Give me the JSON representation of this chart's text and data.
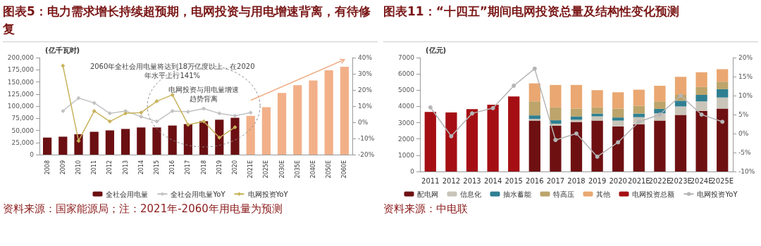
{
  "chart_data": [
    {
      "type": "bar",
      "title": "图表5：电力需求增长持续超预期，电网投资与用电增速背离，有待修复",
      "ylabel": "(亿千瓦时)",
      "categories": [
        "2008",
        "2009",
        "2010",
        "2011",
        "2012",
        "2013",
        "2014",
        "2015",
        "2016",
        "2017",
        "2018",
        "2019",
        "2020",
        "2021E",
        "2025E",
        "2030E",
        "2035E",
        "2040E",
        "2050E",
        "2060E"
      ],
      "series": [
        {
          "name": "全社会用电量",
          "color": "#6b0f12",
          "colors": [
            "#6b0f12",
            "#6b0f12",
            "#6b0f12",
            "#6b0f12",
            "#6b0f12",
            "#6b0f12",
            "#6b0f12",
            "#6b0f12",
            "#6b0f12",
            "#6b0f12",
            "#6b0f12",
            "#6b0f12",
            "#6b0f12",
            "#f2b089",
            "#f2b089",
            "#f2b089",
            "#f2b089",
            "#f2b089",
            "#f2b089",
            "#f2b089"
          ],
          "values": [
            35000,
            37000,
            42000,
            47000,
            50000,
            53000,
            56000,
            56000,
            60000,
            63000,
            69000,
            72000,
            76000,
            80000,
            98000,
            127000,
            143000,
            153000,
            174000,
            181000
          ]
        },
        {
          "name": "全社会用电量YoY",
          "type": "line",
          "axis": "y2",
          "color": "#c2c2c2",
          "values": [
            null,
            7,
            15,
            12,
            5.5,
            7,
            3.5,
            0.5,
            7,
            6.5,
            8.5,
            5.5,
            4,
            6,
            null,
            null,
            null,
            null,
            null,
            null
          ]
        },
        {
          "name": "电网投资YoY",
          "type": "line",
          "axis": "y2",
          "color": "#c8b35c",
          "values": [
            null,
            35,
            -11.5,
            7,
            0.5,
            5.5,
            6,
            13,
            17,
            -1.5,
            0.5,
            -9.5,
            -3,
            null,
            null,
            null,
            null,
            null,
            null,
            null
          ]
        }
      ],
      "ylim": [
        0,
        200000
      ],
      "yticks": [
        0,
        {
          "value": 25000,
          "label": "25,000"
        },
        {
          "value": 50000,
          "label": "50,000"
        },
        {
          "value": 75000,
          "label": "75,000"
        },
        {
          "value": 100000,
          "label": "100,000"
        },
        {
          "value": 125000,
          "label": "125,000"
        },
        {
          "value": 150000,
          "label": "150,000"
        },
        {
          "value": 175000,
          "label": "175,000"
        },
        {
          "value": 200000,
          "label": "200,000"
        }
      ],
      "y2lim": [
        -20,
        40
      ],
      "y2ticks": [
        {
          "value": -20,
          "label": "-20%"
        },
        {
          "value": -10,
          "label": "-10%"
        },
        {
          "value": 0,
          "label": "0%"
        },
        {
          "value": 10,
          "label": "10%"
        },
        {
          "value": 20,
          "label": "20%"
        },
        {
          "value": 30,
          "label": "30%"
        },
        {
          "value": 40,
          "label": "40%"
        }
      ],
      "marker": "diamond",
      "grid": false,
      "legend": "bottom",
      "annotations": [
        "电网投资与用电量增速趋势背离",
        "2060年全社会用电量将达到18万亿度以上，在2020年水平上行141%",
        "资料来源：国家能源局；注：2021年-2060年用电量为预测"
      ]
    },
    {
      "type": "bar",
      "title": "图表11：“十四五”期间电网投资总量及结构性变化预测",
      "ylabel": "(亿元)",
      "stacked": true,
      "categories": [
        "2011",
        "2012",
        "2013",
        "2014",
        "2015",
        "2016",
        "2017",
        "2018",
        "2019",
        "2020",
        "2021E",
        "2022E",
        "2023E",
        "2024E",
        "2025E"
      ],
      "series": [
        {
          "name": "配电网",
          "color": "#6e1012",
          "values": [
            null,
            null,
            null,
            null,
            null,
            3130,
            2810,
            3050,
            3130,
            2770,
            2900,
            3130,
            3480,
            3730,
            3870
          ]
        },
        {
          "name": "信息化",
          "color": "#c9c5b9",
          "values": [
            null,
            null,
            null,
            null,
            null,
            100,
            130,
            130,
            260,
            360,
            440,
            450,
            520,
            580,
            680
          ]
        },
        {
          "name": "抽水蓄能",
          "color": "#2f7f92",
          "values": [
            null,
            null,
            null,
            null,
            null,
            220,
            210,
            210,
            170,
            190,
            220,
            270,
            350,
            400,
            510
          ]
        },
        {
          "name": "特高压",
          "color": "#bca46b",
          "values": [
            null,
            null,
            null,
            null,
            null,
            860,
            790,
            480,
            380,
            550,
            470,
            460,
            360,
            480,
            460
          ]
        },
        {
          "name": "其他",
          "color": "#eaa771",
          "values": [
            null,
            null,
            null,
            null,
            null,
            1110,
            1380,
            1450,
            1060,
            1000,
            1000,
            960,
            1110,
            910,
            770
          ]
        },
        {
          "name": "电网投资总额",
          "color": "#a50f14",
          "values": [
            3660,
            3630,
            3840,
            4110,
            4610,
            null,
            null,
            null,
            null,
            null,
            null,
            null,
            null,
            null,
            null
          ]
        },
        {
          "name": "电网投资YoY",
          "type": "line",
          "axis": "y2",
          "color": "#b5b5b5",
          "values": [
            6.9,
            -0.7,
            5.3,
            6.7,
            12.6,
            17.1,
            -1.7,
            0.0,
            -6.1,
            -2.3,
            3.1,
            5.0,
            10.0,
            5.0,
            3.1
          ]
        }
      ],
      "ylim": [
        0,
        7000
      ],
      "yticks": [
        0,
        1000,
        2000,
        3000,
        4000,
        5000,
        6000,
        7000
      ],
      "y2lim": [
        -10,
        20
      ],
      "y2ticks": [
        {
          "value": -10,
          "label": "-10%"
        },
        {
          "value": -5,
          "label": "-5%"
        },
        {
          "value": 0,
          "label": "0%"
        },
        {
          "value": 5,
          "label": "5%"
        },
        {
          "value": 10,
          "label": "10%"
        },
        {
          "value": 15,
          "label": "15%"
        },
        {
          "value": 20,
          "label": "20%"
        }
      ],
      "marker": "circle",
      "grid": false,
      "legend": "bottom",
      "annotations": [
        "资料来源：中电联"
      ]
    }
  ]
}
